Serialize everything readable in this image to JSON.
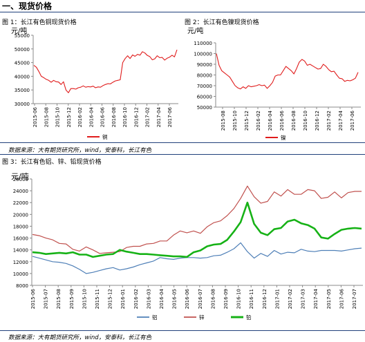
{
  "section_title": "一、现货价格",
  "source_1": "数据来源：大有期货研究所，wind，安泰科，长江有色",
  "source_2": "数据来源：大有期货研究所，wind，安泰科，长江有色",
  "chart_data": [
    {
      "type": "line",
      "title": "图 1：长江有色铜现货价格",
      "unit": "元/吨",
      "ylim": [
        30000,
        55000
      ],
      "yticks": [
        30000,
        35000,
        40000,
        45000,
        50000,
        55000
      ],
      "grid": false,
      "legend_position": "bottom",
      "x_tick_labels": [
        "2015-06",
        "2015-08",
        "2015-10",
        "2015-12",
        "2016-02",
        "2016-04",
        "2016-06",
        "2016-08",
        "2016-10",
        "2016-12",
        "2017-02",
        "2017-04",
        "2017-06"
      ],
      "series": [
        {
          "name": "铜",
          "color": "#e01b1b",
          "values": [
            44000,
            43300,
            41800,
            40000,
            39500,
            38900,
            38500,
            37800,
            38500,
            38000,
            37900,
            37000,
            38000,
            35000,
            34000,
            35500,
            35500,
            35300,
            35800,
            36000,
            36500,
            36000,
            36200,
            36100,
            36400,
            35800,
            36100,
            36000,
            36600,
            37000,
            37300,
            37200,
            37800,
            38300,
            38500,
            38700,
            45000,
            46500,
            47500,
            46500,
            47800,
            47300,
            48000,
            47700,
            49000,
            48500,
            47600,
            47200,
            46000,
            46400,
            47500,
            46800,
            46900,
            45900,
            46600,
            47000,
            47700,
            47100,
            49700
          ]
        }
      ]
    },
    {
      "type": "line",
      "title": "图 2：长江有色镍现货价格",
      "unit": "元/吨",
      "ylim": [
        50000,
        110000
      ],
      "yticks": [
        50000,
        60000,
        70000,
        80000,
        90000,
        100000,
        110000
      ],
      "grid": false,
      "legend_position": "bottom",
      "x_tick_labels": [
        "2015-08",
        "2015-10",
        "2015-12",
        "2016-02",
        "2016-04",
        "2016-06",
        "2016-08",
        "2016-10",
        "2016-12",
        "2017-02",
        "2017-04",
        "2017-06"
      ],
      "series": [
        {
          "name": "镍",
          "color": "#e01b1b",
          "values": [
            100000,
            89000,
            84000,
            82000,
            80000,
            78000,
            74000,
            70000,
            68000,
            67000,
            69000,
            67500,
            70000,
            69000,
            69500,
            70000,
            71000,
            70000,
            70500,
            67500,
            70000,
            73000,
            79000,
            80000,
            80000,
            84000,
            88000,
            86000,
            84000,
            81000,
            86000,
            92000,
            94500,
            93000,
            89000,
            90000,
            88500,
            87000,
            85500,
            86000,
            90000,
            88000,
            85000,
            83000,
            83500,
            80000,
            77000,
            76500,
            74000,
            75000,
            74500,
            75500,
            77000,
            82500
          ]
        }
      ]
    },
    {
      "type": "line",
      "title": "图 3：长江有色铝、锌、铅现货价格",
      "unit": "元/吨",
      "ylim": [
        8000,
        26000
      ],
      "yticks": [
        8000,
        10000,
        12000,
        14000,
        16000,
        18000,
        20000,
        22000,
        24000,
        26000
      ],
      "grid": false,
      "legend_position": "bottom",
      "x_tick_labels": [
        "2015-06",
        "2015-07",
        "2015-08",
        "2015-09",
        "2015-10",
        "2015-11",
        "2015-12",
        "2016-01",
        "2016-02",
        "2016-03",
        "2016-04",
        "2016-05",
        "2016-06",
        "2016-07",
        "2016-08",
        "2016-09",
        "2016-10",
        "2016-11",
        "2016-12",
        "2017-01",
        "2017-02",
        "2017-03",
        "2017-04",
        "2017-05",
        "2017-06",
        "2017-07"
      ],
      "series": [
        {
          "name": "铝",
          "color": "#4e7fb7",
          "values": [
            12900,
            12600,
            12300,
            12000,
            11900,
            11700,
            11300,
            10700,
            10000,
            10200,
            10500,
            10800,
            11000,
            10600,
            10800,
            11100,
            11500,
            11800,
            12100,
            12700,
            12500,
            12400,
            12600,
            12700,
            12700,
            12600,
            12700,
            13000,
            13100,
            13600,
            14200,
            15200,
            13700,
            12600,
            13400,
            12900,
            13900,
            13300,
            13600,
            13500,
            14100,
            13800,
            13700,
            13900,
            13900,
            13900,
            13800,
            14000,
            14200,
            14300
          ]
        },
        {
          "name": "锌",
          "color": "#c0504d",
          "values": [
            16600,
            16400,
            16000,
            15700,
            15100,
            15000,
            14100,
            13800,
            14500,
            14000,
            13400,
            13500,
            13600,
            13700,
            14400,
            14600,
            14600,
            15000,
            15100,
            15500,
            15500,
            16500,
            17200,
            16900,
            17200,
            16800,
            17900,
            18600,
            18900,
            19800,
            21000,
            22700,
            24800,
            23000,
            21900,
            22200,
            23800,
            23100,
            24200,
            23400,
            23400,
            24200,
            24000,
            22700,
            22900,
            23800,
            22800,
            23700,
            23900,
            23900
          ]
        },
        {
          "name": "铅",
          "color": "#16b216",
          "values": [
            13600,
            13500,
            13300,
            13400,
            13500,
            13400,
            13600,
            13200,
            13200,
            12800,
            13000,
            13200,
            13300,
            14000,
            13700,
            13500,
            13300,
            13300,
            13200,
            13100,
            13000,
            12900,
            12900,
            12800,
            13600,
            13900,
            14600,
            14900,
            15000,
            15700,
            17100,
            18700,
            22000,
            18400,
            16900,
            16500,
            17500,
            17700,
            18800,
            19100,
            18500,
            18200,
            17600,
            16100,
            15900,
            16700,
            17400,
            17600,
            17700,
            17600
          ]
        }
      ]
    }
  ]
}
